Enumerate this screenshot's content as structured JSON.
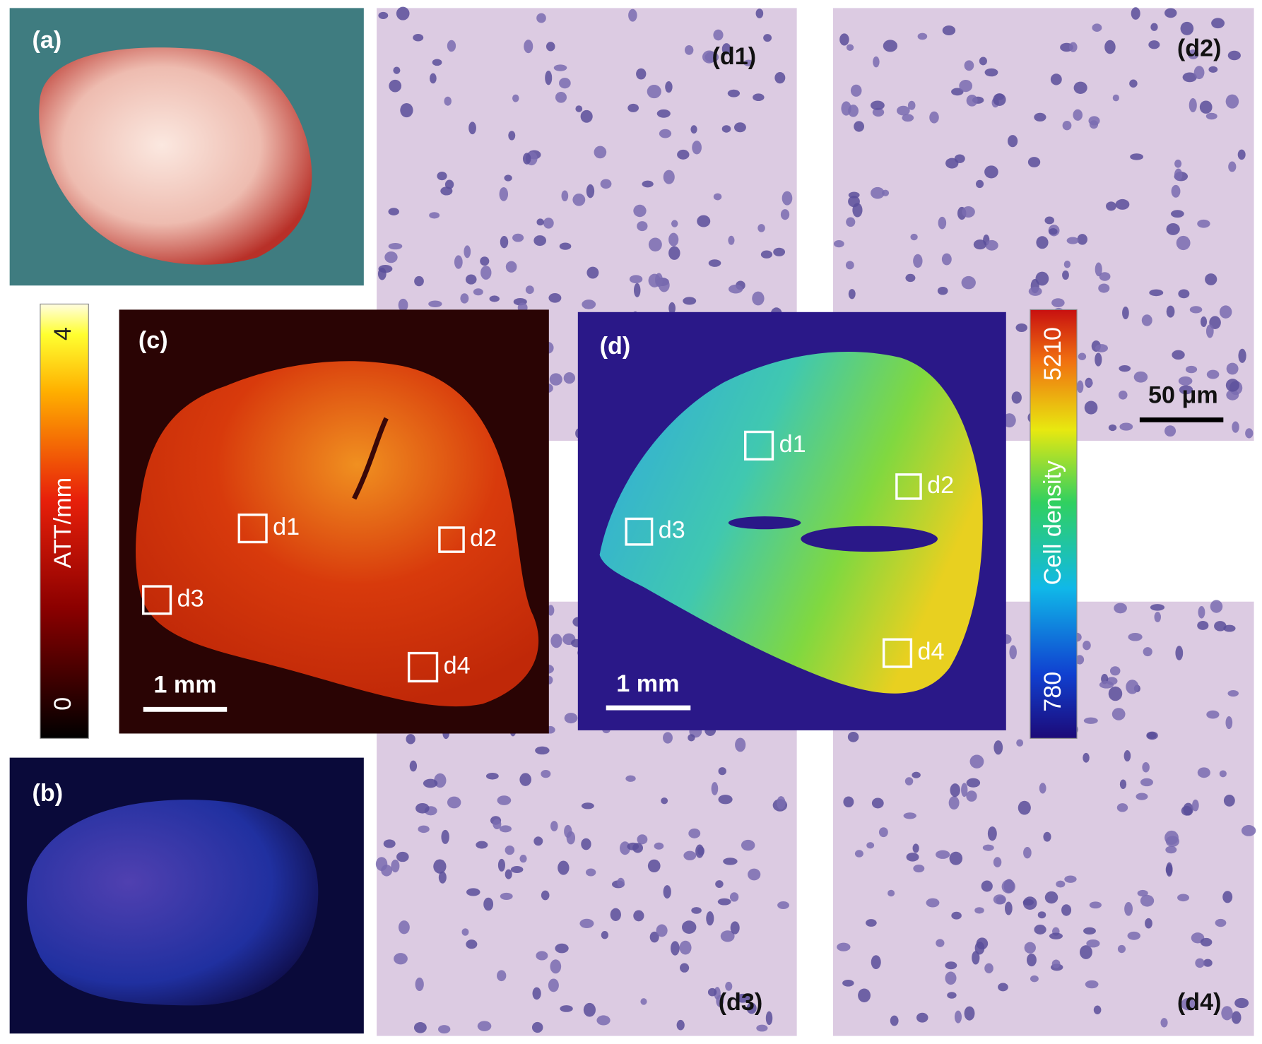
{
  "photos": [
    {
      "label": "(a)"
    },
    {
      "label": "(b)"
    }
  ],
  "histology": [
    {
      "label": "(d1)"
    },
    {
      "label": "(d2)",
      "scale_bar": "50 μm"
    },
    {
      "label": "(d3)"
    },
    {
      "label": "(d4)"
    }
  ],
  "attenuation_map": {
    "label": "(c)",
    "scale_bar": "1 mm",
    "regions": [
      "d1",
      "d2",
      "d3",
      "d4"
    ],
    "colorbar": {
      "title": "ATT/mm",
      "min": 0,
      "max": 4
    }
  },
  "cell_density_map": {
    "label": "(d)",
    "scale_bar": "1 mm",
    "regions": [
      "d1",
      "d2",
      "d3",
      "d4"
    ],
    "colorbar": {
      "title": "Cell density",
      "min": 780,
      "max": 5210
    }
  }
}
